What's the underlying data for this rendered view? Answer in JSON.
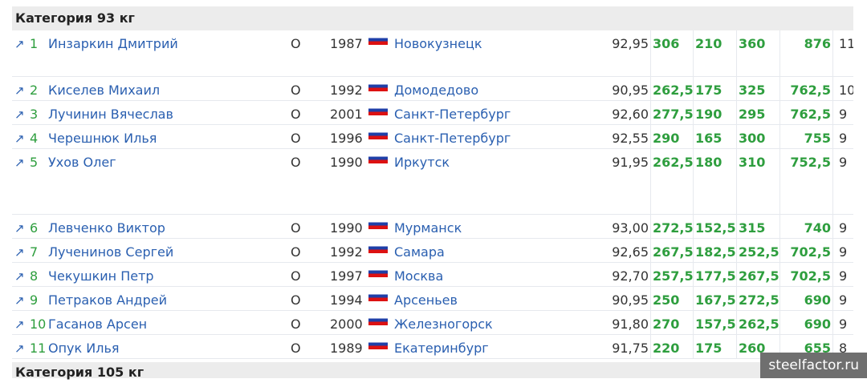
{
  "categories": [
    "Категория 93 кг",
    "Категория 105 кг"
  ],
  "rows": [
    {
      "rank": "1",
      "name": "Инзаркин Дмитрий",
      "type": "О",
      "year": "1987",
      "city": "Новокузнецк",
      "bw": "92,95",
      "squat": "306",
      "bench": "210",
      "dead": "360",
      "total": "876",
      "extra": "11"
    },
    {
      "rank": "2",
      "name": "Киселев Михаил",
      "type": "О",
      "year": "1992",
      "city": "Домодедово",
      "bw": "90,95",
      "squat": "262,5",
      "bench": "175",
      "dead": "325",
      "total": "762,5",
      "extra": "10"
    },
    {
      "rank": "3",
      "name": "Лучинин Вячеслав",
      "type": "О",
      "year": "2001",
      "city": "Санкт-Петербург",
      "bw": "92,60",
      "squat": "277,5",
      "bench": "190",
      "dead": "295",
      "total": "762,5",
      "extra": "9"
    },
    {
      "rank": "4",
      "name": "Черешнюк Илья",
      "type": "О",
      "year": "1996",
      "city": "Санкт-Петербург",
      "bw": "92,55",
      "squat": "290",
      "bench": "165",
      "dead": "300",
      "total": "755",
      "extra": "9"
    },
    {
      "rank": "5",
      "name": "Ухов Олег",
      "type": "О",
      "year": "1990",
      "city": "Иркутск",
      "bw": "91,95",
      "squat": "262,5",
      "bench": "180",
      "dead": "310",
      "total": "752,5",
      "extra": "9"
    },
    {
      "rank": "6",
      "name": "Левченко Виктор",
      "type": "О",
      "year": "1990",
      "city": "Мурманск",
      "bw": "93,00",
      "squat": "272,5",
      "bench": "152,5",
      "dead": "315",
      "total": "740",
      "extra": "9"
    },
    {
      "rank": "7",
      "name": "Лученинов Сергей",
      "type": "О",
      "year": "1992",
      "city": "Самара",
      "bw": "92,65",
      "squat": "267,5",
      "bench": "182,5",
      "dead": "252,5",
      "total": "702,5",
      "extra": "9"
    },
    {
      "rank": "8",
      "name": "Чекушкин Петр",
      "type": "О",
      "year": "1997",
      "city": "Москва",
      "bw": "92,70",
      "squat": "257,5",
      "bench": "177,5",
      "dead": "267,5",
      "total": "702,5",
      "extra": "9"
    },
    {
      "rank": "9",
      "name": "Петраков Андрей",
      "type": "О",
      "year": "1994",
      "city": "Арсеньев",
      "bw": "90,95",
      "squat": "250",
      "bench": "167,5",
      "dead": "272,5",
      "total": "690",
      "extra": "9"
    },
    {
      "rank": "10",
      "name": "Гасанов Арсен",
      "type": "О",
      "year": "2000",
      "city": "Железногорск",
      "bw": "91,80",
      "squat": "270",
      "bench": "157,5",
      "dead": "262,5",
      "total": "690",
      "extra": "9"
    },
    {
      "rank": "11",
      "name": "Опук Илья",
      "type": "О",
      "year": "1989",
      "city": "Екатеринбург",
      "bw": "91,75",
      "squat": "220",
      "bench": "175",
      "dead": "260",
      "total": "655",
      "extra": "8"
    }
  ],
  "watermark": "steelfactor.ru",
  "colors": {
    "link": "#2a5fb0",
    "result": "#2e9e3e"
  }
}
